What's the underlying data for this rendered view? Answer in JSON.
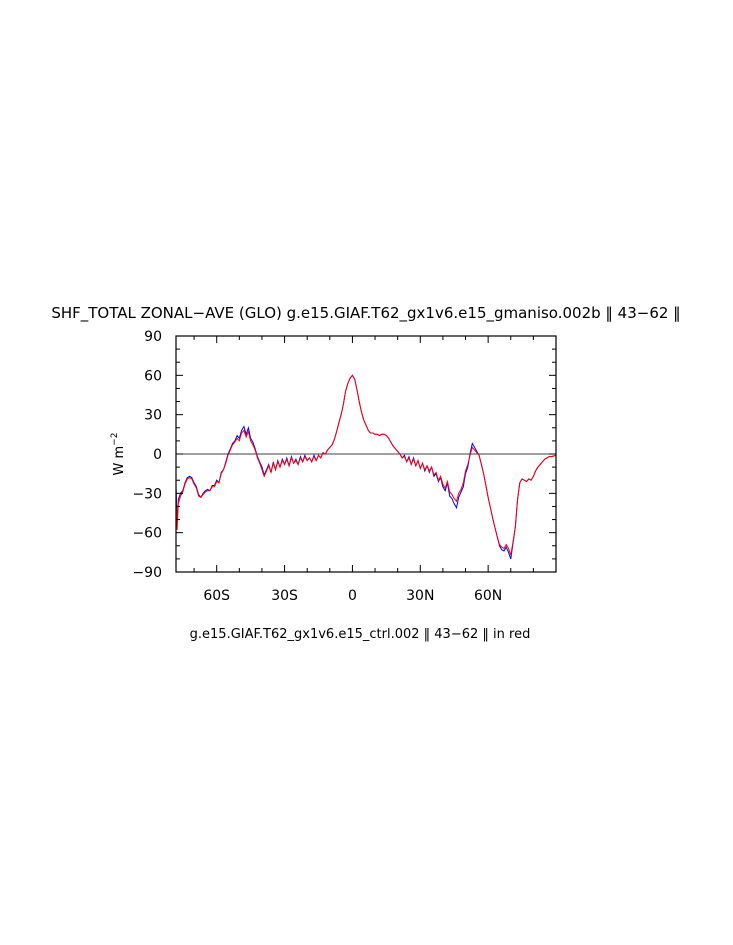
{
  "chart_data": {
    "type": "line",
    "title": "SHF_TOTAL ZONAL−AVE (GLO) g.e15.GIAF.T62_gx1v6.e15_gmaniso.002b ‖ 43−62 ‖",
    "subtitle": "g.e15.GIAF.T62_gx1v6.e15_ctrl.002 ‖ 43−62 ‖ in red",
    "xlabel": "",
    "ylabel": "W m",
    "ylabel_exponent": "−2",
    "xlim": [
      -78,
      90
    ],
    "ylim": [
      -90,
      90
    ],
    "xticks": [
      {
        "value": -60,
        "label": "60S"
      },
      {
        "value": -30,
        "label": "30S"
      },
      {
        "value": 0,
        "label": "0"
      },
      {
        "value": 30,
        "label": "30N"
      },
      {
        "value": 60,
        "label": "60N"
      }
    ],
    "yticks": [
      {
        "value": 90,
        "label": "90"
      },
      {
        "value": 60,
        "label": "60"
      },
      {
        "value": 30,
        "label": "30"
      },
      {
        "value": 0,
        "label": "0"
      },
      {
        "value": -30,
        "label": "−30"
      },
      {
        "value": -60,
        "label": "−60"
      },
      {
        "value": -90,
        "label": "−90"
      }
    ],
    "reference_line": 0,
    "grid": false,
    "series": [
      {
        "color": "#0000ff",
        "x": [
          -78,
          -77.5,
          -77,
          -76,
          -75,
          -74,
          -73,
          -72,
          -71,
          -70,
          -69,
          -68,
          -67,
          -66,
          -65,
          -64,
          -63,
          -62,
          -61,
          -60,
          -59,
          -58,
          -57,
          -56,
          -55,
          -54,
          -53,
          -52,
          -51,
          -50,
          -49,
          -48,
          -47,
          -46,
          -45,
          -44,
          -43,
          -42,
          -41,
          -40,
          -39,
          -38,
          -37,
          -36,
          -35,
          -34,
          -33,
          -32,
          -31,
          -30,
          -29,
          -28,
          -27,
          -26,
          -25,
          -24,
          -23,
          -22,
          -21,
          -20,
          -19,
          -18,
          -17,
          -16,
          -15,
          -14,
          -13,
          -12,
          -11,
          -10,
          -9,
          -8,
          -7,
          -6,
          -5,
          -4,
          -3,
          -2,
          -1,
          0,
          1,
          2,
          3,
          4,
          5,
          6,
          7,
          8,
          9,
          10,
          11,
          12,
          13,
          14,
          15,
          16,
          17,
          18,
          19,
          20,
          21,
          22,
          23,
          24,
          25,
          26,
          27,
          28,
          29,
          30,
          31,
          32,
          33,
          34,
          35,
          36,
          37,
          38,
          39,
          40,
          41,
          42,
          43,
          44,
          45,
          46,
          47,
          48,
          49,
          50,
          51,
          52,
          53,
          54,
          55,
          56,
          57,
          58,
          59,
          60,
          61,
          62,
          63,
          64,
          65,
          66,
          67,
          68,
          69,
          70,
          71,
          72,
          73,
          74,
          75,
          76,
          77,
          78,
          79,
          80,
          81,
          82,
          83,
          84,
          85,
          86,
          87,
          88,
          89,
          90
        ],
        "y": [
          -24,
          -53,
          -35,
          -30,
          -28,
          -22,
          -18,
          -17,
          -18,
          -22,
          -25,
          -31,
          -33,
          -30,
          -28,
          -27,
          -28,
          -24,
          -24,
          -20,
          -22,
          -14,
          -12,
          -6,
          0,
          4,
          8,
          10,
          14,
          12,
          18,
          21,
          15,
          20,
          12,
          9,
          4,
          -2,
          -6,
          -10,
          -16,
          -12,
          -8,
          -14,
          -6,
          -12,
          -5,
          -10,
          -4,
          -8,
          -3,
          -9,
          -2,
          -7,
          -4,
          -8,
          -2,
          -6,
          -1,
          -5,
          -3,
          -6,
          -1,
          -5,
          -1,
          -3,
          1,
          0,
          3,
          5,
          7,
          11,
          17,
          24,
          30,
          38,
          48,
          54,
          58,
          60,
          57,
          49,
          40,
          32,
          26,
          22,
          18,
          16,
          16,
          15,
          15,
          14,
          15,
          15,
          14,
          12,
          9,
          6,
          4,
          2,
          0,
          -3,
          -1,
          -6,
          -2,
          -8,
          -3,
          -9,
          -5,
          -11,
          -7,
          -13,
          -9,
          -14,
          -10,
          -17,
          -15,
          -21,
          -18,
          -25,
          -28,
          -22,
          -32,
          -34,
          -38,
          -41,
          -33,
          -29,
          -25,
          -15,
          -10,
          0,
          8,
          5,
          2,
          -1,
          -8,
          -15,
          -24,
          -33,
          -41,
          -49,
          -56,
          -63,
          -70,
          -73,
          -74,
          -71,
          -75,
          -80,
          -68,
          -56,
          -35,
          -22,
          -19,
          -20,
          -21,
          -19,
          -20,
          -17,
          -13,
          -10,
          -8,
          -6,
          -4,
          -3,
          -2,
          -2,
          -1.5,
          -1
        ]
      },
      {
        "color": "#ff0000",
        "x": [
          -78,
          -77.5,
          -77,
          -76,
          -75,
          -74,
          -73,
          -72,
          -71,
          -70,
          -69,
          -68,
          -67,
          -66,
          -65,
          -64,
          -63,
          -62,
          -61,
          -60,
          -59,
          -58,
          -57,
          -56,
          -55,
          -54,
          -53,
          -52,
          -51,
          -50,
          -49,
          -48,
          -47,
          -46,
          -45,
          -44,
          -43,
          -42,
          -41,
          -40,
          -39,
          -38,
          -37,
          -36,
          -35,
          -34,
          -33,
          -32,
          -31,
          -30,
          -29,
          -28,
          -27,
          -26,
          -25,
          -24,
          -23,
          -22,
          -21,
          -20,
          -19,
          -18,
          -17,
          -16,
          -15,
          -14,
          -13,
          -12,
          -11,
          -10,
          -9,
          -8,
          -7,
          -6,
          -5,
          -4,
          -3,
          -2,
          -1,
          0,
          1,
          2,
          3,
          4,
          5,
          6,
          7,
          8,
          9,
          10,
          11,
          12,
          13,
          14,
          15,
          16,
          17,
          18,
          19,
          20,
          21,
          22,
          23,
          24,
          25,
          26,
          27,
          28,
          29,
          30,
          31,
          32,
          33,
          34,
          35,
          36,
          37,
          38,
          39,
          40,
          41,
          42,
          43,
          44,
          45,
          46,
          47,
          48,
          49,
          50,
          51,
          52,
          53,
          54,
          55,
          56,
          57,
          58,
          59,
          60,
          61,
          62,
          63,
          64,
          65,
          66,
          67,
          68,
          69,
          70,
          71,
          72,
          73,
          74,
          75,
          76,
          77,
          78,
          79,
          80,
          81,
          82,
          83,
          84,
          85,
          86,
          87,
          88,
          89,
          90
        ],
        "y": [
          -26,
          -58,
          -38,
          -32,
          -29,
          -23,
          -19,
          -18,
          -19,
          -23,
          -26,
          -32,
          -33,
          -31,
          -29,
          -28,
          -28,
          -25,
          -25,
          -21,
          -22,
          -15,
          -12,
          -7,
          -1,
          3,
          7,
          9,
          12,
          10,
          16,
          18,
          13,
          17,
          10,
          7,
          3,
          -3,
          -7,
          -12,
          -17,
          -13,
          -9,
          -14,
          -7,
          -12,
          -6,
          -10,
          -5,
          -8,
          -4,
          -9,
          -3,
          -7,
          -5,
          -8,
          -3,
          -6,
          -2,
          -5,
          -3,
          -6,
          -2,
          -5,
          -1,
          -3,
          1,
          0,
          3,
          5,
          7,
          11,
          17,
          24,
          30,
          38,
          48,
          54,
          58,
          60,
          57,
          49,
          40,
          32,
          26,
          22,
          18,
          16,
          16,
          15,
          15,
          14,
          15,
          15,
          14,
          12,
          9,
          6,
          4,
          2,
          0,
          -3,
          -2,
          -6,
          -3,
          -8,
          -4,
          -9,
          -5,
          -11,
          -7,
          -12,
          -9,
          -13,
          -10,
          -16,
          -14,
          -20,
          -17,
          -23,
          -26,
          -21,
          -29,
          -31,
          -34,
          -36,
          -30,
          -27,
          -22,
          -13,
          -8,
          -1,
          5,
          3,
          1,
          -1,
          -8,
          -15,
          -24,
          -33,
          -41,
          -49,
          -56,
          -63,
          -69,
          -71,
          -72,
          -69,
          -72,
          -77,
          -67,
          -56,
          -35,
          -22,
          -19,
          -20,
          -21,
          -19,
          -20,
          -17,
          -13,
          -10,
          -8,
          -6,
          -4,
          -3,
          -2,
          -2,
          -1.5,
          -1
        ]
      }
    ]
  }
}
